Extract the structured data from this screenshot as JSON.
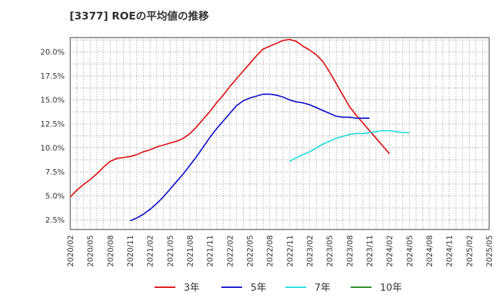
{
  "chart_data": {
    "type": "line",
    "title": "[3377]  ROEの平均値の推移",
    "xlabel": "",
    "ylabel": "",
    "x_ticks": [
      "2020/02",
      "2020/05",
      "2020/08",
      "2020/11",
      "2021/02",
      "2021/05",
      "2021/08",
      "2021/11",
      "2022/02",
      "2022/05",
      "2022/08",
      "2022/11",
      "2023/02",
      "2023/05",
      "2023/08",
      "2023/11",
      "2024/02",
      "2024/05",
      "2024/08",
      "2024/11",
      "2025/02",
      "2025/05"
    ],
    "y_ticks": [
      "2.5%",
      "5.0%",
      "7.5%",
      "10.0%",
      "12.5%",
      "15.0%",
      "17.5%",
      "20.0%"
    ],
    "ylim": [
      1.5,
      21.5
    ],
    "x_range": [
      "2020/02",
      "2025/05"
    ],
    "grid": true,
    "legend_position": "bottom",
    "series": [
      {
        "name": "3年",
        "color": "#dd1111",
        "start": "2020/02",
        "values": [
          4.9,
          5.6,
          6.2,
          6.7,
          7.3,
          8.0,
          8.6,
          8.9,
          9.0,
          9.1,
          9.3,
          9.6,
          9.8,
          10.1,
          10.3,
          10.5,
          10.7,
          11.0,
          11.5,
          12.2,
          13.0,
          13.8,
          14.7,
          15.5,
          16.4,
          17.2,
          18.0,
          18.8,
          19.6,
          20.3,
          20.6,
          20.9,
          21.2,
          21.3,
          21.1,
          20.6,
          20.2,
          19.7,
          19.0,
          17.9,
          16.7,
          15.5,
          14.3,
          13.4,
          12.6,
          11.8,
          11.0,
          10.2,
          9.4
        ]
      },
      {
        "name": "5年",
        "color": "#1111cc",
        "start": "2020/11",
        "values": [
          2.4,
          2.7,
          3.1,
          3.6,
          4.2,
          4.9,
          5.7,
          6.5,
          7.3,
          8.2,
          9.1,
          10.1,
          11.1,
          12.0,
          12.8,
          13.6,
          14.4,
          14.9,
          15.2,
          15.4,
          15.6,
          15.6,
          15.5,
          15.3,
          15.0,
          14.8,
          14.7,
          14.5,
          14.2,
          13.9,
          13.6,
          13.3,
          13.2,
          13.2,
          13.1,
          13.1,
          13.1
        ]
      },
      {
        "name": "7年",
        "color": "#22dddd",
        "start": "2022/11",
        "values": [
          8.6,
          9.0,
          9.3,
          9.6,
          10.0,
          10.4,
          10.7,
          11.0,
          11.2,
          11.4,
          11.5,
          11.5,
          11.6,
          11.7,
          11.8,
          11.8,
          11.7,
          11.6,
          11.6
        ]
      },
      {
        "name": "10年",
        "color": "#228822",
        "start": "2025/02",
        "values": []
      }
    ]
  }
}
